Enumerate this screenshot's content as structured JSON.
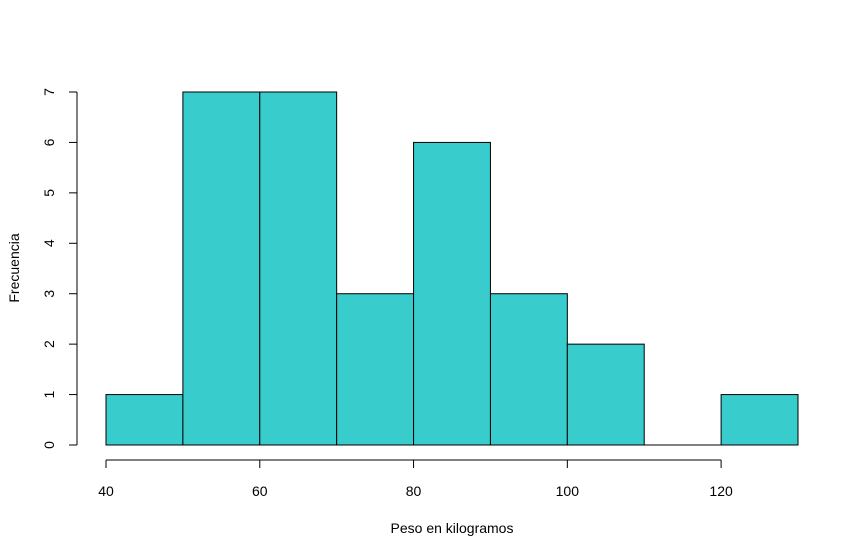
{
  "chart_data": {
    "type": "bar",
    "title": "",
    "xlabel": "Peso en kilogramos",
    "ylabel": "Frecuencia",
    "bins": [
      {
        "from": 40,
        "to": 50,
        "count": 1
      },
      {
        "from": 50,
        "to": 60,
        "count": 7
      },
      {
        "from": 60,
        "to": 70,
        "count": 7
      },
      {
        "from": 70,
        "to": 80,
        "count": 3
      },
      {
        "from": 80,
        "to": 90,
        "count": 6
      },
      {
        "from": 90,
        "to": 100,
        "count": 3
      },
      {
        "from": 100,
        "to": 110,
        "count": 2
      },
      {
        "from": 110,
        "to": 120,
        "count": 0
      },
      {
        "from": 120,
        "to": 130,
        "count": 1
      }
    ],
    "xlim": [
      40,
      130
    ],
    "ylim": [
      0,
      7
    ],
    "x_ticks": [
      40,
      60,
      80,
      100,
      120
    ],
    "x_tick_labels": [
      "40",
      "60",
      "80",
      "100",
      "120"
    ],
    "y_ticks": [
      0,
      1,
      2,
      3,
      4,
      5,
      6,
      7
    ],
    "y_tick_labels": [
      "0",
      "1",
      "2",
      "3",
      "4",
      "5",
      "6",
      "7"
    ],
    "bar_color": "#38CCCC",
    "grid": false,
    "legend": "none"
  }
}
